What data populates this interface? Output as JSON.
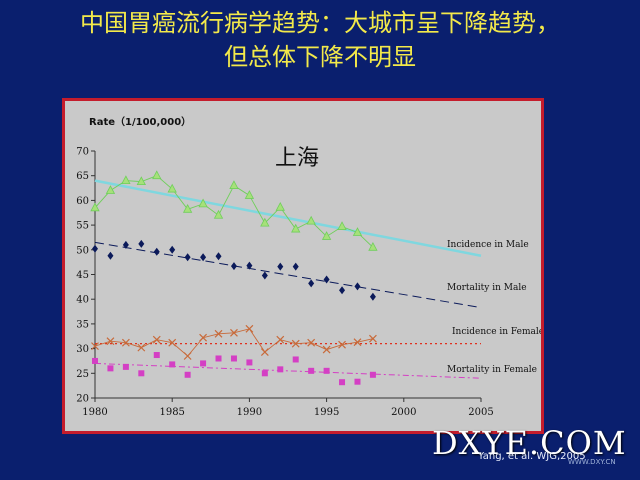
{
  "slide": {
    "title_line1": "中国胃癌流行病学趋势：大城市呈下降趋势，",
    "title_line2": "但总体下降不明显",
    "citation": "Yang, et al. WJG,2005",
    "watermark": "DXYE.COM",
    "watermark_url": "WWW.DXY.CN"
  },
  "chart_data": {
    "type": "line",
    "title": "上海",
    "ylabel": "Rate（1/100,000）",
    "xlabel": "",
    "xlim": [
      1980,
      2005
    ],
    "ylim": [
      20,
      70
    ],
    "xticks": [
      1980,
      1985,
      1990,
      1995,
      2000,
      2005
    ],
    "yticks": [
      20,
      25,
      30,
      35,
      40,
      45,
      50,
      55,
      60,
      65,
      70
    ],
    "grid": false,
    "colors": {
      "incidence_male": "#6fcf5a",
      "incidence_male_trend": "#7fd7df",
      "mortality_male": "#0b1a5a",
      "incidence_female": "#c86a3a",
      "incidence_female_trend": "#e0301e",
      "mortality_female": "#d43fc4"
    },
    "series": [
      {
        "name": "Incidence in Male",
        "marker": "triangle",
        "x": [
          1980,
          1981,
          1982,
          1983,
          1984,
          1985,
          1986,
          1987,
          1988,
          1989,
          1990,
          1991,
          1992,
          1993,
          1994,
          1995,
          1996,
          1997,
          1998
        ],
        "values": [
          58.5,
          62,
          64,
          63.8,
          65,
          62.3,
          58.2,
          59.3,
          57,
          63,
          61,
          55.4,
          58.6,
          54.2,
          55.8,
          52.7,
          54.7,
          53.5,
          50.5
        ],
        "trend": [
          64,
          48.8
        ]
      },
      {
        "name": "Mortality in Male",
        "marker": "diamond",
        "x": [
          1980,
          1981,
          1982,
          1983,
          1984,
          1985,
          1986,
          1987,
          1988,
          1989,
          1990,
          1991,
          1992,
          1993,
          1994,
          1995,
          1996,
          1997,
          1998
        ],
        "values": [
          50.2,
          48.8,
          51,
          51.2,
          49.6,
          50,
          48.5,
          48.5,
          48.7,
          46.7,
          46.8,
          44.8,
          46.6,
          46.6,
          43.2,
          44,
          41.8,
          42.6,
          40.5
        ],
        "trend": [
          51.5,
          38.3
        ]
      },
      {
        "name": "Incidence in Female",
        "marker": "x",
        "x": [
          1980,
          1981,
          1982,
          1983,
          1984,
          1985,
          1986,
          1987,
          1988,
          1989,
          1990,
          1991,
          1992,
          1993,
          1994,
          1995,
          1996,
          1997,
          1998
        ],
        "values": [
          30.5,
          31.5,
          31.2,
          30.2,
          31.8,
          31.2,
          28.5,
          32.2,
          33,
          33.2,
          34,
          29.3,
          31.8,
          31,
          31.2,
          29.8,
          30.8,
          31.3,
          32
        ],
        "trend": [
          31,
          31
        ]
      },
      {
        "name": "Mortality in Female",
        "marker": "square",
        "x": [
          1980,
          1981,
          1982,
          1983,
          1984,
          1985,
          1986,
          1987,
          1988,
          1989,
          1990,
          1991,
          1992,
          1993,
          1994,
          1995,
          1996,
          1997,
          1998
        ],
        "values": [
          27.5,
          26,
          26.3,
          25,
          28.7,
          26.8,
          24.7,
          27,
          28,
          28,
          27.2,
          25,
          25.8,
          27.8,
          25.5,
          25.5,
          23.2,
          23.3,
          24.7
        ],
        "trend": [
          27,
          24
        ]
      }
    ]
  }
}
